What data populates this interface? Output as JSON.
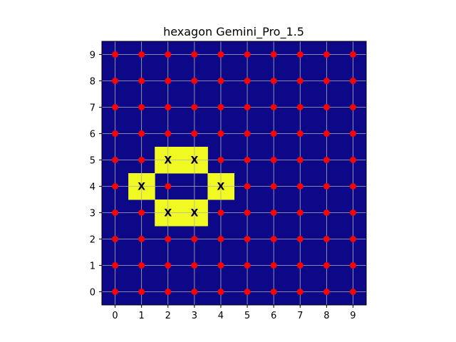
{
  "chart_data": {
    "type": "heatmap",
    "title": "hexagon Gemini_Pro_1.5",
    "xlabel": "",
    "ylabel": "",
    "x_ticks": [
      "0",
      "1",
      "2",
      "3",
      "4",
      "5",
      "6",
      "7",
      "8",
      "9"
    ],
    "y_ticks": [
      "0",
      "1",
      "2",
      "3",
      "4",
      "5",
      "6",
      "7",
      "8",
      "9"
    ],
    "xlim": [
      -0.5,
      9.5
    ],
    "ylim": [
      -0.5,
      9.5
    ],
    "grid": true,
    "colors": {
      "background_cell": "#0d0887",
      "highlight_cell": "#f0f921",
      "dot": "#ff0000",
      "grid": "#b0b0b0"
    },
    "highlighted_cells": [
      {
        "x": 2,
        "y": 5
      },
      {
        "x": 3,
        "y": 5
      },
      {
        "x": 1,
        "y": 4
      },
      {
        "x": 4,
        "y": 4
      },
      {
        "x": 2,
        "y": 3
      },
      {
        "x": 3,
        "y": 3
      }
    ],
    "x_markers": {
      "symbol": "X",
      "points": [
        {
          "x": 2,
          "y": 5
        },
        {
          "x": 3,
          "y": 5
        },
        {
          "x": 1,
          "y": 4
        },
        {
          "x": 4,
          "y": 4
        },
        {
          "x": 2,
          "y": 3
        },
        {
          "x": 3,
          "y": 3
        }
      ]
    },
    "dots": "all grid points except X markers and (3,4)"
  }
}
